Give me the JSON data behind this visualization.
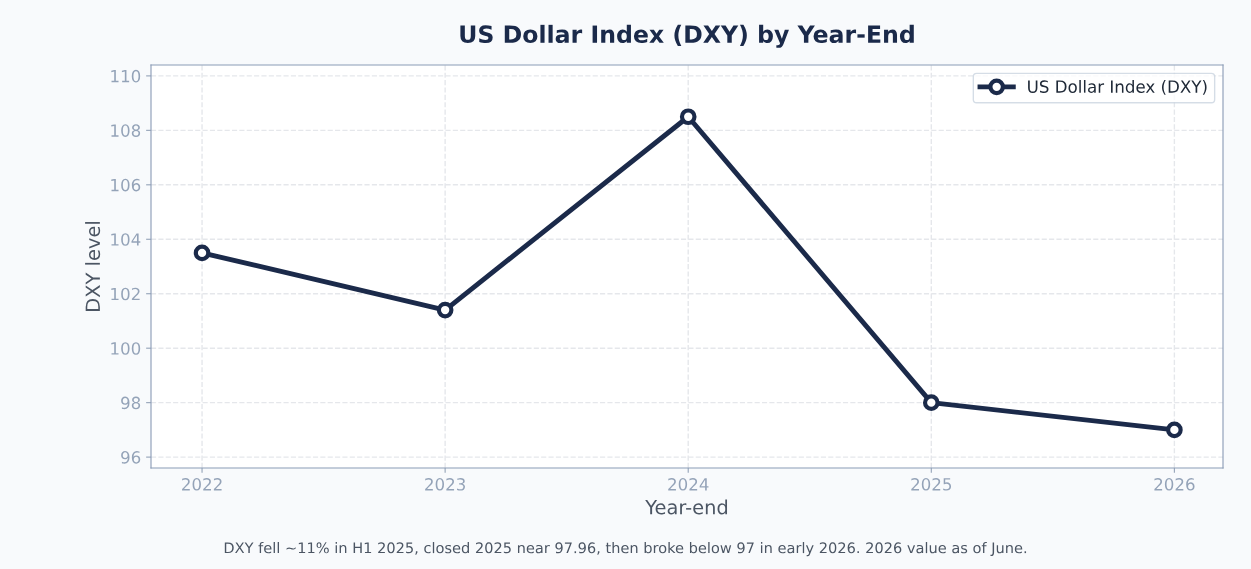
{
  "chart_data": {
    "type": "line",
    "title": "US Dollar Index (DXY) by Year-End",
    "xlabel": "Year-end",
    "ylabel": "DXY level",
    "x": [
      2022,
      2023,
      2024,
      2025,
      2026
    ],
    "series": [
      {
        "name": "US Dollar Index (DXY)",
        "color": "#1b2a4a",
        "values": [
          103.5,
          101.4,
          108.5,
          98.0,
          97.0
        ]
      }
    ],
    "xlim": [
      2021.79,
      2026.2
    ],
    "xticks": [
      2022,
      2023,
      2024,
      2025,
      2026
    ],
    "ylim": [
      95.6,
      110.4
    ],
    "yticks": [
      96,
      98,
      100,
      102,
      104,
      106,
      108,
      110
    ],
    "grid": true,
    "legend": "top right",
    "marker": "circle",
    "line_style": "solid",
    "annotations": [
      "DXY fell ~11% in H1 2025, closed 2025 near 97.96, then broke below 97 in early 2026. 2026 value as of June."
    ]
  }
}
